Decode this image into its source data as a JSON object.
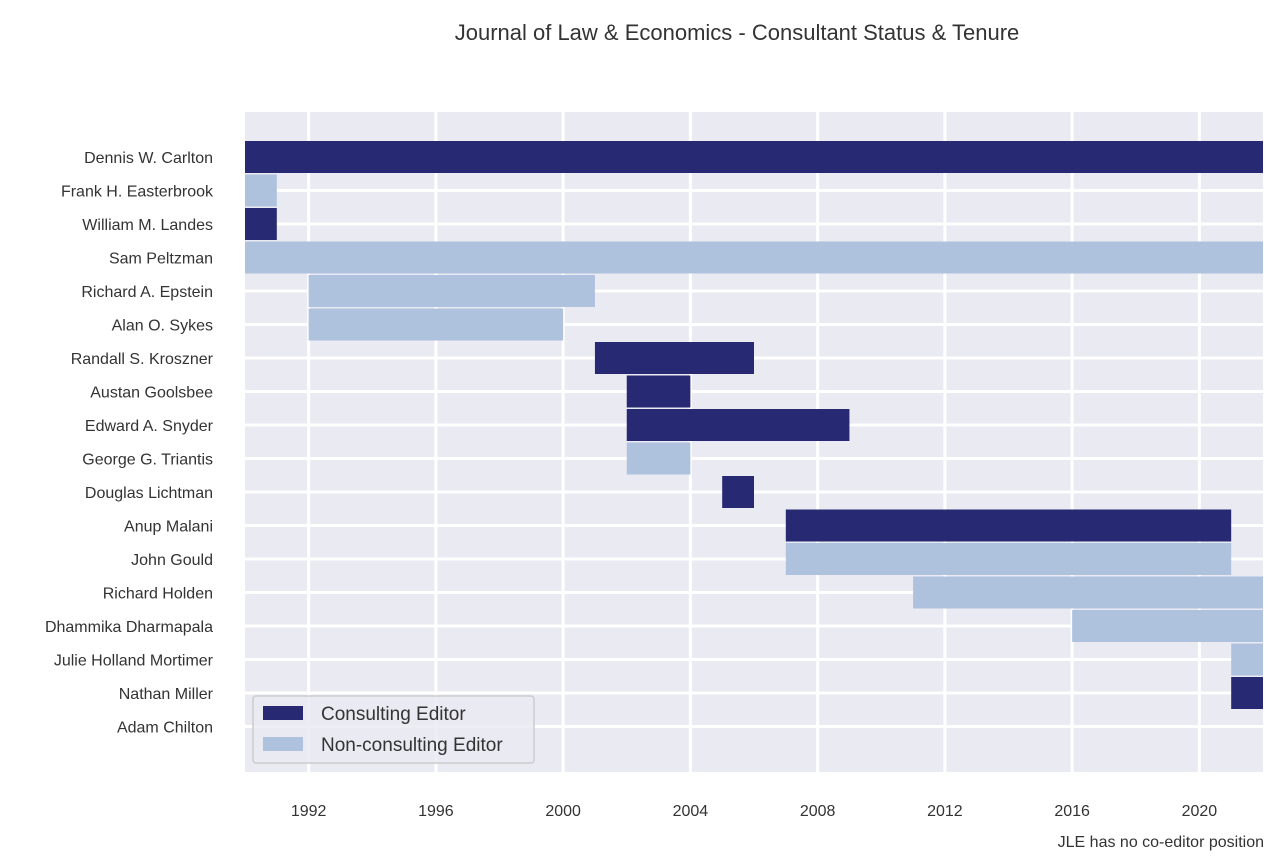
{
  "chart_data": {
    "type": "gantt",
    "title": "Journal of Law & Economics - Consultant Status & Tenure",
    "note": "JLE has no co-editor position",
    "xlim": [
      1990,
      2022
    ],
    "x_ticks": [
      "1992",
      "1996",
      "2000",
      "2004",
      "2008",
      "2012",
      "2016",
      "2020"
    ],
    "grid": true,
    "legend_position": "bottom-left",
    "colors": {
      "consulting": "#272a72",
      "non_consulting": "#aec2de",
      "plot_bg": "#eaeaf2",
      "grid": "#ffffff"
    },
    "legend": [
      {
        "key": "consulting",
        "label": "Consulting Editor"
      },
      {
        "key": "non_consulting",
        "label": "Non-consulting Editor"
      }
    ],
    "people": [
      {
        "name": "Dennis W. Carlton",
        "bars": [
          {
            "start": 1990,
            "end": 2022,
            "status": "consulting"
          }
        ]
      },
      {
        "name": "Frank H. Easterbrook",
        "bars": [
          {
            "start": 1990,
            "end": 1991,
            "status": "non_consulting"
          }
        ]
      },
      {
        "name": "William M. Landes",
        "bars": [
          {
            "start": 1990,
            "end": 1991,
            "status": "consulting"
          }
        ]
      },
      {
        "name": "Sam Peltzman",
        "bars": [
          {
            "start": 1990,
            "end": 2022,
            "status": "non_consulting"
          }
        ]
      },
      {
        "name": "Richard A. Epstein",
        "bars": [
          {
            "start": 1992,
            "end": 2001,
            "status": "non_consulting"
          }
        ]
      },
      {
        "name": "Alan O. Sykes",
        "bars": [
          {
            "start": 1992,
            "end": 2000,
            "status": "non_consulting"
          }
        ]
      },
      {
        "name": "Randall S. Kroszner",
        "bars": [
          {
            "start": 2001,
            "end": 2006,
            "status": "consulting"
          }
        ]
      },
      {
        "name": "Austan Goolsbee",
        "bars": [
          {
            "start": 2002,
            "end": 2004,
            "status": "consulting"
          }
        ]
      },
      {
        "name": "Edward A. Snyder",
        "bars": [
          {
            "start": 2002,
            "end": 2009,
            "status": "consulting"
          }
        ]
      },
      {
        "name": "George G. Triantis",
        "bars": [
          {
            "start": 2002,
            "end": 2004,
            "status": "non_consulting"
          }
        ]
      },
      {
        "name": "Douglas Lichtman",
        "bars": [
          {
            "start": 2005,
            "end": 2006,
            "status": "consulting"
          }
        ]
      },
      {
        "name": "Anup Malani",
        "bars": [
          {
            "start": 2007,
            "end": 2021,
            "status": "consulting"
          }
        ]
      },
      {
        "name": "John Gould",
        "bars": [
          {
            "start": 2007,
            "end": 2021,
            "status": "non_consulting"
          }
        ]
      },
      {
        "name": "Richard Holden",
        "bars": [
          {
            "start": 2011,
            "end": 2022,
            "status": "non_consulting"
          }
        ]
      },
      {
        "name": "Dhammika Dharmapala",
        "bars": [
          {
            "start": 2016,
            "end": 2022,
            "status": "non_consulting"
          }
        ]
      },
      {
        "name": "Julie Holland Mortimer",
        "bars": [
          {
            "start": 2021,
            "end": 2022,
            "status": "non_consulting"
          }
        ]
      },
      {
        "name": "Nathan Miller",
        "bars": [
          {
            "start": 2021,
            "end": 2022,
            "status": "consulting"
          }
        ]
      },
      {
        "name": "Adam Chilton",
        "bars": []
      }
    ]
  }
}
